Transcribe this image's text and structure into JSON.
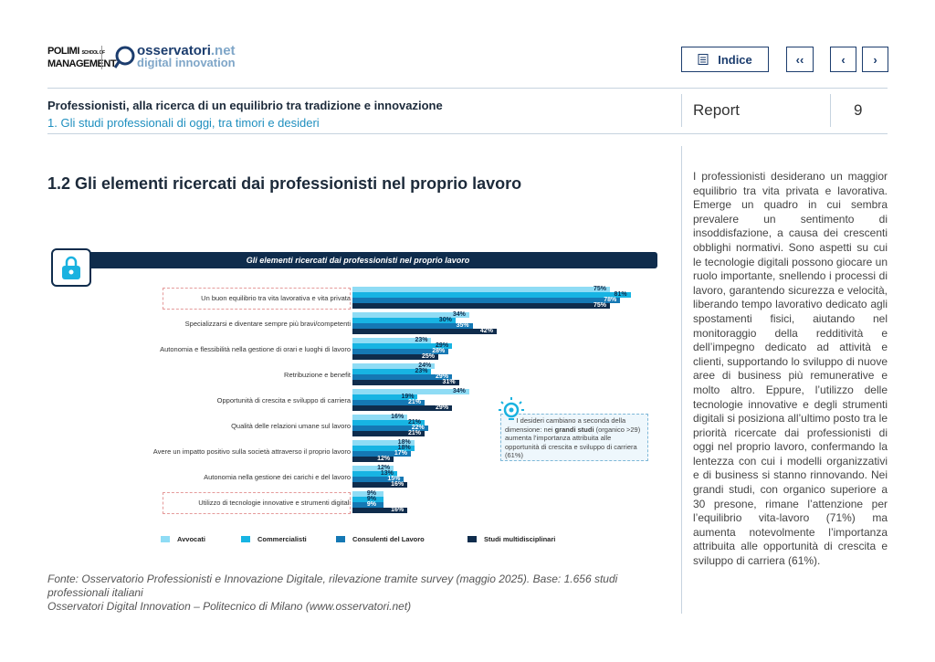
{
  "header": {
    "logo_left": "POLIMI SCHOOL OF MANAGEMENT",
    "logo_right": "osservatori.net digital innovation",
    "index_label": "Indice",
    "first_icon": "double-chevron-left",
    "prev_icon": "chevron-left",
    "next_icon": "chevron-right"
  },
  "breadcrumb": {
    "title": "Professionisti, alla ricerca di un equilibrio tra tradizione e innovazione",
    "subtitle": "1. Gli studi professionali di oggi, tra timori e desideri",
    "section": "Report",
    "page": "9"
  },
  "section_title": "1.2 Gli elementi ricercati dai professionisti nel proprio lavoro",
  "sidebar_text": "I professionisti desiderano un maggior equilibrio tra vita privata e lavorativa. Emerge un quadro in cui sembra prevalere un sentimento di insoddisfazione, a causa dei crescenti obblighi normativi. Sono aspetti su cui le tecnologie digitali possono giocare un ruolo importante, snellendo i processi di lavoro, garantendo sicurezza e velocità, liberando tempo lavorativo dedicato agli spostamenti fisici, aiutando nel monitoraggio della redditività e dell’impegno dedicato ad attività e clienti, supportando lo sviluppo di nuove aree di business più remunerative e molto altro. Eppure, l’utilizzo delle tecnologie innovative e degli strumenti digitali si posiziona all’ultimo posto tra le priorità ricercate dai professionisti di oggi nel proprio lavoro, confermando la lentezza con cui i modelli organizzativi e di business si stanno rinnovando. Nei grandi studi, con organico superiore a 30 presone, rimane l’attenzione per l’equilibrio vita-lavoro (71%) ma aumenta notevolmente l’importanza attribuita alle opportunità di crescita e sviluppo di carriera (61%).",
  "note": {
    "text_pre": "I desideri cambiano a seconda della dimensione: nei ",
    "text_bold": "grandi studi",
    "text_post": " (organico >29) aumenta l’importanza attribuita alle opportunità di crescita e sviluppo di carriera (61%)",
    "icon": "lightbulb-icon"
  },
  "source": {
    "line1": "Fonte: Osservatorio Professionisti e Innovazione Digitale, rilevazione tramite survey (maggio 2025). Base: 1.656 studi professionali italiani",
    "line2": "Osservatori Digital Innovation – Politecnico di Milano (www.osservatori.net)"
  },
  "chart_data": {
    "type": "bar",
    "orientation": "horizontal",
    "title": "Gli elementi ricercati dai professionisti nel proprio lavoro",
    "categories": [
      "Un buon equilibrio tra vita lavorativa e vita privata",
      "Specializzarsi e diventare sempre più bravi/competenti",
      "Autonomia e flessibilità nella gestione di orari e luoghi di lavoro",
      "Retribuzione e benefit",
      "Opportunità di crescita e sviluppo di carriera",
      "Qualità delle relazioni umane sul lavoro",
      "Avere un impatto positivo sulla società attraverso il proprio lavoro",
      "Autonomia nella gestione dei carichi e del lavoro",
      "Utilizzo di tecnologie innovative e strumenti digitali"
    ],
    "highlighted": [
      0,
      8
    ],
    "unit": "%",
    "legend": "bottom",
    "series": [
      {
        "name": "Avvocati",
        "color": "#8fdcf5",
        "values": [
          75,
          34,
          23,
          24,
          34,
          16,
          18,
          12,
          9
        ]
      },
      {
        "name": "Commercialisti",
        "color": "#17b4e3",
        "values": [
          81,
          30,
          29,
          23,
          19,
          21,
          18,
          13,
          9
        ]
      },
      {
        "name": "Consulenti del Lavoro",
        "color": "#1578b4",
        "values": [
          78,
          35,
          28,
          29,
          21,
          22,
          17,
          15,
          9
        ]
      },
      {
        "name": "Studi multidisciplinari",
        "color": "#0f2c4c",
        "values": [
          75,
          42,
          25,
          31,
          29,
          21,
          12,
          16,
          16
        ]
      }
    ]
  }
}
